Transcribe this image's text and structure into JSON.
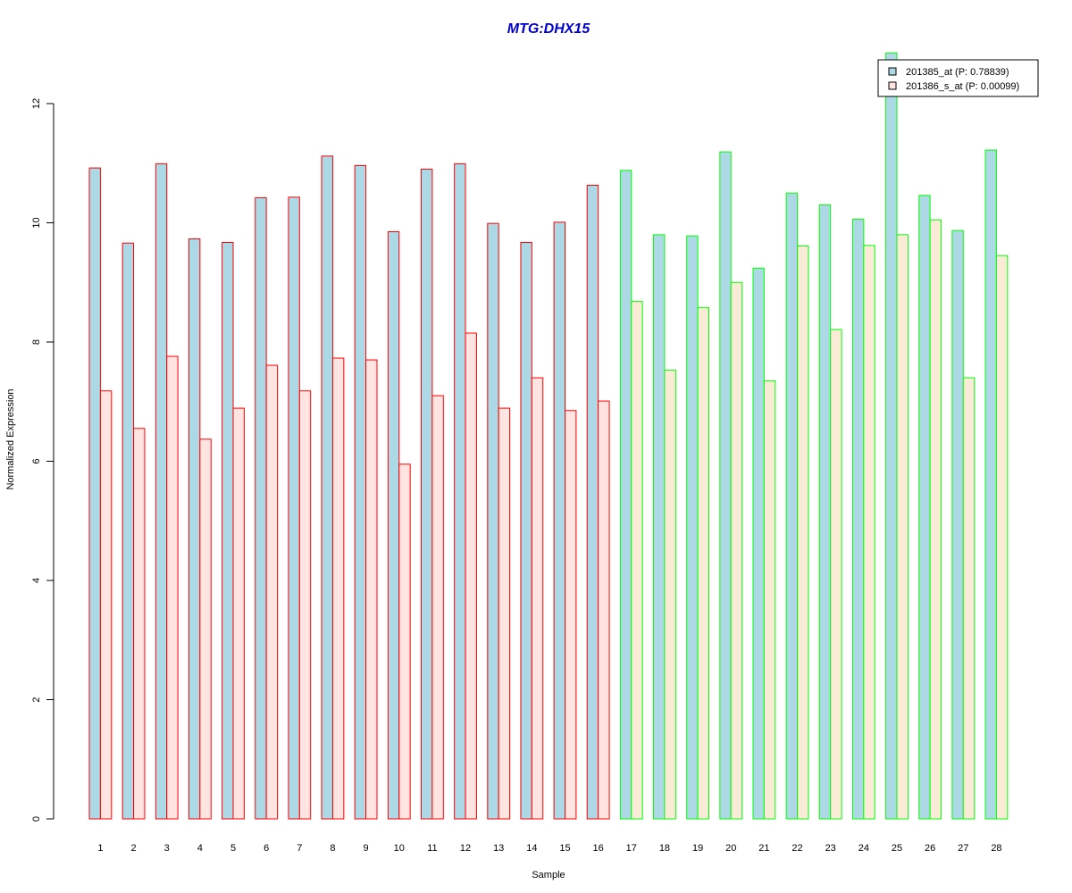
{
  "colors": {
    "title": "#0000CC",
    "series1_fill": "#ADD8E6",
    "series2_fill_red_group": "#FFE4E1",
    "series2_fill_green_group": "#FAEBD7",
    "group1_border": "#FF0000",
    "group2_border": "#00FF00",
    "axis": "#000000"
  },
  "chart_data": {
    "type": "bar",
    "title": "MTG:DHX15",
    "xlabel": "Sample",
    "ylabel": "Normalized Expression",
    "ylim": [
      0,
      12
    ],
    "yticks": [
      0,
      2,
      4,
      6,
      8,
      10,
      12
    ],
    "categories": [
      "1",
      "2",
      "3",
      "4",
      "5",
      "6",
      "7",
      "8",
      "9",
      "10",
      "11",
      "12",
      "13",
      "14",
      "15",
      "16",
      "17",
      "18",
      "19",
      "20",
      "21",
      "22",
      "23",
      "24",
      "25",
      "26",
      "27",
      "28"
    ],
    "groups": [
      {
        "samples": [
          1,
          16
        ],
        "border_color": "#FF0000"
      },
      {
        "samples": [
          17,
          28
        ],
        "border_color": "#00FF00"
      }
    ],
    "legend_position": "top-right",
    "series": [
      {
        "name": "201385_at (P: 0.78839)",
        "values": [
          10.92,
          9.66,
          10.99,
          9.73,
          9.67,
          10.42,
          10.43,
          11.12,
          10.96,
          9.85,
          10.9,
          10.99,
          9.99,
          9.67,
          10.01,
          10.63,
          10.88,
          9.8,
          9.78,
          11.19,
          9.24,
          10.5,
          10.3,
          10.06,
          12.85,
          10.46,
          9.87,
          11.22
        ]
      },
      {
        "name": "201386_s_at (P: 0.00099)",
        "values": [
          7.18,
          6.55,
          7.76,
          6.37,
          6.89,
          7.61,
          7.18,
          7.73,
          7.7,
          5.95,
          7.1,
          8.15,
          6.89,
          7.4,
          6.85,
          7.01,
          8.68,
          7.53,
          8.58,
          9.0,
          7.35,
          9.61,
          8.21,
          9.62,
          9.8,
          10.05,
          7.4,
          9.45
        ]
      }
    ]
  }
}
